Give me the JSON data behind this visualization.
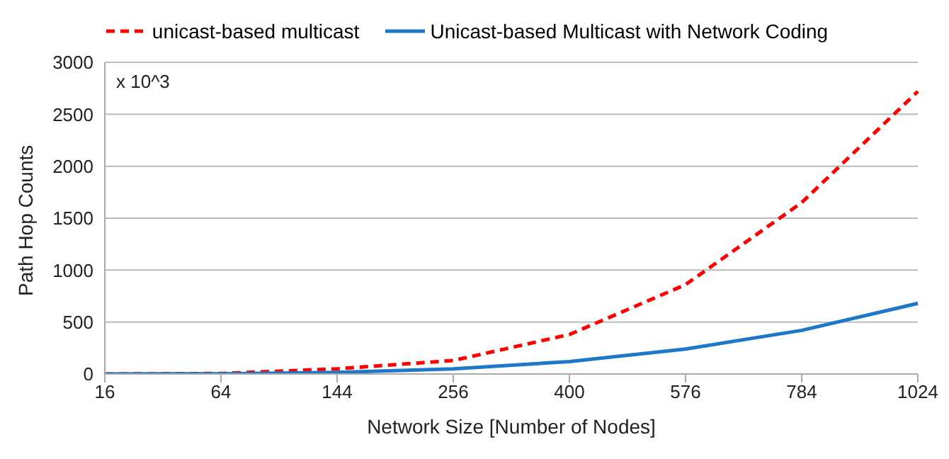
{
  "chart_data": {
    "type": "line",
    "xlabel": "Network Size [Number of Nodes]",
    "ylabel": "Path Hop Counts",
    "annotations": [
      "x 10^3"
    ],
    "categories": [
      "16",
      "64",
      "144",
      "256",
      "400",
      "576",
      "784",
      "1024"
    ],
    "series": [
      {
        "name": "unicast-based multicast",
        "color": "#ff0000",
        "line_style": "dashed",
        "values": [
          0,
          5,
          50,
          130,
          380,
          860,
          1650,
          2720
        ]
      },
      {
        "name": "Unicast-based Multicast with Network Coding",
        "color": "#1f77c8",
        "line_style": "solid",
        "values": [
          0,
          2,
          15,
          50,
          120,
          240,
          420,
          680
        ]
      }
    ],
    "ylim": [
      0,
      3000
    ],
    "yticks": [
      0,
      500,
      1000,
      1500,
      2000,
      2500,
      3000
    ],
    "grid": "y",
    "legend": "top",
    "marker": "none"
  }
}
